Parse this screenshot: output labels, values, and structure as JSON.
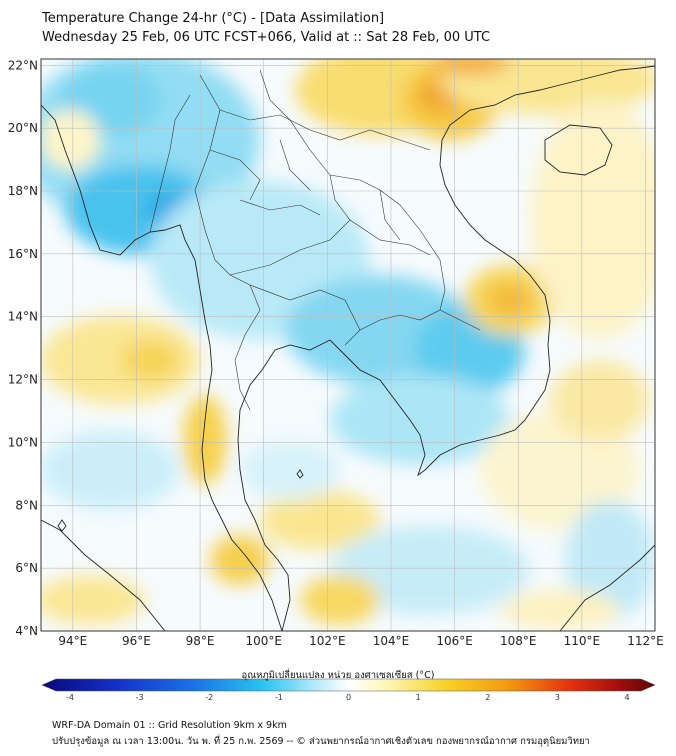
{
  "header": {
    "title": "Temperature Change 24-hr (°C) - [Data Assimilation]",
    "subtitle": "Wednesday 25 Feb, 06 UTC FCST+066, Valid at :: Sat 28 Feb, 00 UTC"
  },
  "map": {
    "lat_labels": [
      "22°N",
      "20°N",
      "18°N",
      "16°N",
      "14°N",
      "12°N",
      "10°N",
      "8°N",
      "6°N",
      "4°N"
    ],
    "lon_labels": [
      "94°E",
      "96°E",
      "98°E",
      "100°E",
      "102°E",
      "104°E",
      "106°E",
      "108°E",
      "110°E",
      "112°E"
    ],
    "lat_values": [
      22,
      20,
      18,
      16,
      14,
      12,
      10,
      8,
      6,
      4
    ],
    "lon_values": [
      94,
      96,
      98,
      100,
      102,
      104,
      106,
      108,
      110,
      112
    ],
    "extent": {
      "lon_min": 93,
      "lon_max": 112.3,
      "lat_min": 4,
      "lat_max": 22.2
    }
  },
  "colorbar": {
    "label": "อุณหภูมิเปลี่ยนแปลง หน่วย องศาเซลเซียส (°C)",
    "ticks": [
      "-4",
      "-3",
      "-2",
      "-1",
      "0",
      "1",
      "2",
      "3",
      "4"
    ],
    "tick_values": [
      -4,
      -3,
      -2,
      -1,
      0,
      1,
      2,
      3,
      4
    ]
  },
  "colors": {
    "cold": "#0a0a7a",
    "cool": "#1fb4e8",
    "neutral": "#ffffff",
    "warm": "#f7d126",
    "hot": "#e83a12",
    "hottest": "#6b0a0a",
    "grid": "#bdbdbd"
  },
  "footer": {
    "line1": "WRF-DA Domain 01 :: Grid Resolution 9km x 9km",
    "line2": "ปรับปรุงข้อมูล ณ เวลา 13:00น. วัน พ. ที่ 25 ก.พ. 2569 -- © ส่วนพยากรณ์อากาศเชิงตัวเลข กองพยากรณ์อากาศ กรมอุตุนิยมวิทยา"
  }
}
